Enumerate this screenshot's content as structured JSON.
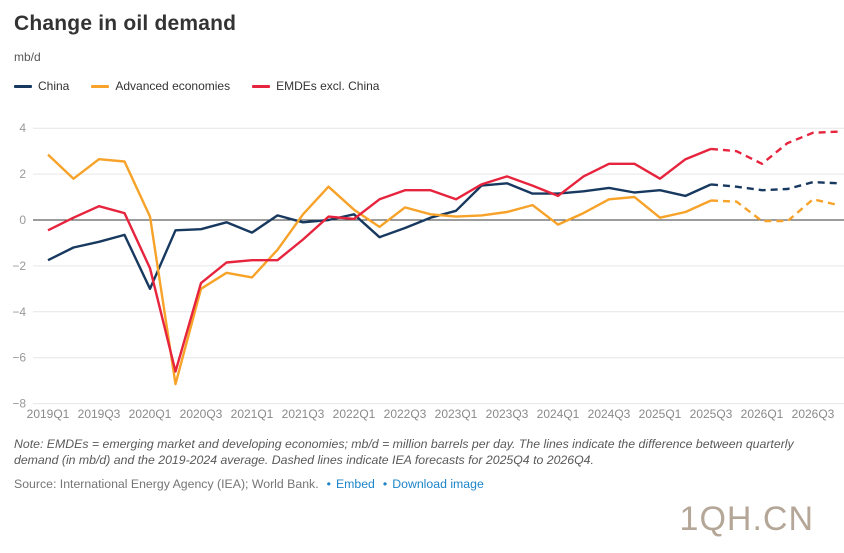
{
  "title": "Change in oil demand",
  "unit_label": "mb/d",
  "note": "Note: EMDEs = emerging market and developing economies; mb/d = million barrels per day. The lines indicate the difference between quarterly demand (in mb/d) and the 2019-2024 average. Dashed lines indicate IEA forecasts for 2025Q4 to 2026Q4.",
  "source": {
    "text": "Source: International Energy Agency (IEA); World Bank.",
    "separator": "•",
    "links": [
      {
        "label": "Embed"
      },
      {
        "label": "Download image"
      }
    ]
  },
  "watermark": "1QH.CN",
  "colors": {
    "china": "#18395f",
    "advanced": "#f7a229",
    "emdes": "#e6243d",
    "grid": "#e6e6e6",
    "zero_line": "#3a3a3a",
    "axis_text": "#8a8a8a",
    "link": "#1d84c8"
  },
  "chart_data": {
    "type": "line",
    "title": "Change in oil demand",
    "ylabel": "mb/d",
    "xlabel": "",
    "ylim": [
      -8,
      4
    ],
    "yticks": [
      4,
      2,
      0,
      -2,
      -4,
      -6,
      -8
    ],
    "grid": "horizontal",
    "legend_position": "top-left",
    "x_tick_step": 2,
    "forecast_start": "2025Q3",
    "forecast_note": "Dashed lines are IEA forecasts for 2025Q4 to 2026Q4",
    "x": [
      "2019Q1",
      "2019Q2",
      "2019Q3",
      "2019Q4",
      "2020Q1",
      "2020Q2",
      "2020Q3",
      "2020Q4",
      "2021Q1",
      "2021Q2",
      "2021Q3",
      "2021Q4",
      "2022Q1",
      "2022Q2",
      "2022Q3",
      "2022Q4",
      "2023Q1",
      "2023Q2",
      "2023Q3",
      "2023Q4",
      "2024Q1",
      "2024Q2",
      "2024Q3",
      "2024Q4",
      "2025Q1",
      "2025Q2",
      "2025Q3",
      "2025Q4",
      "2026Q1",
      "2026Q2",
      "2026Q3",
      "2026Q4"
    ],
    "series": [
      {
        "name": "China",
        "color": "#18395f",
        "values": [
          -1.75,
          -1.2,
          -0.95,
          -0.65,
          -3.0,
          -0.45,
          -0.4,
          -0.1,
          -0.55,
          0.2,
          -0.1,
          0.0,
          0.25,
          -0.75,
          -0.35,
          0.1,
          0.4,
          1.5,
          1.6,
          1.15,
          1.15,
          1.25,
          1.4,
          1.2,
          1.3,
          1.05,
          1.55,
          1.45,
          1.3,
          1.35,
          1.65,
          1.6
        ]
      },
      {
        "name": "Advanced economies",
        "color": "#f7a229",
        "values": [
          2.85,
          1.8,
          2.65,
          2.55,
          0.15,
          -7.15,
          -3.0,
          -2.3,
          -2.5,
          -1.3,
          0.25,
          1.45,
          0.45,
          -0.3,
          0.55,
          0.25,
          0.15,
          0.2,
          0.35,
          0.65,
          -0.2,
          0.3,
          0.9,
          1.0,
          0.1,
          0.35,
          0.85,
          0.8,
          -0.05,
          -0.05,
          0.9,
          0.65
        ]
      },
      {
        "name": "EMDEs excl. China",
        "color": "#e6243d",
        "values": [
          -0.45,
          0.1,
          0.6,
          0.3,
          -2.1,
          -6.6,
          -2.75,
          -1.85,
          -1.75,
          -1.75,
          -0.85,
          0.15,
          0.05,
          0.9,
          1.3,
          1.3,
          0.9,
          1.55,
          1.9,
          1.5,
          1.05,
          1.9,
          2.45,
          2.45,
          1.8,
          2.65,
          3.1,
          3.0,
          2.45,
          3.35,
          3.8,
          3.85
        ]
      }
    ]
  }
}
